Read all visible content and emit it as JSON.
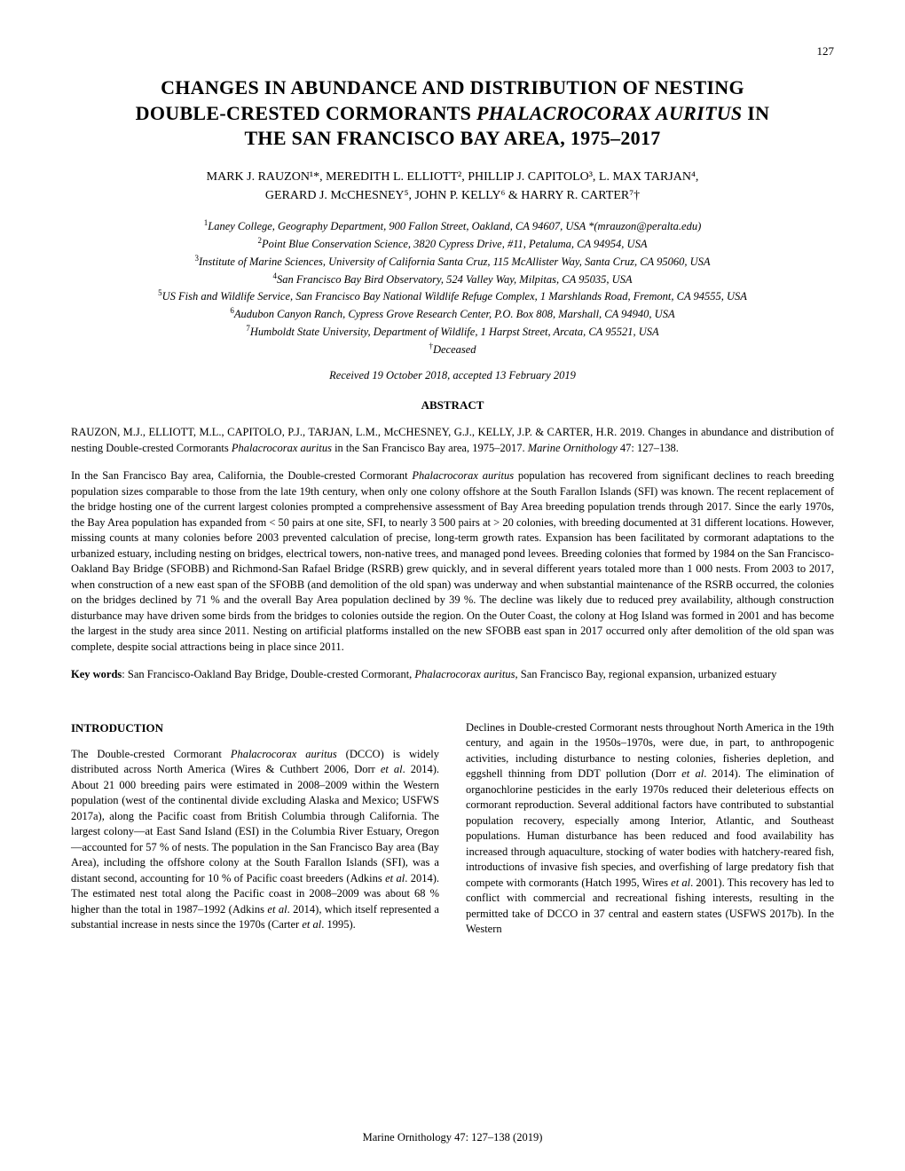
{
  "page_number": "127",
  "title_line1": "CHANGES IN ABUNDANCE AND DISTRIBUTION OF NESTING",
  "title_line2_pre": "DOUBLE-CRESTED CORMORANTS ",
  "title_line2_italic": "PHALACROCORAX AURITUS",
  "title_line2_post": " IN",
  "title_line3": "THE SAN FRANCISCO BAY AREA, 1975–2017",
  "authors_line1": "MARK J. RAUZON¹*, MEREDITH L. ELLIOTT², PHILLIP J. CAPITOLO³, L. MAX TARJAN⁴,",
  "authors_line2": "GERARD J. McCHESNEY⁵, JOHN P. KELLY⁶ & HARRY R. CARTER⁷†",
  "affil1": "Laney College, Geography Department, 900 Fallon Street, Oakland, CA 94607, USA *(mrauzon@peralta.edu)",
  "affil2": "Point Blue Conservation Science, 3820 Cypress Drive, #11, Petaluma, CA 94954, USA",
  "affil3": "Institute of Marine Sciences, University of California Santa Cruz, 115 McAllister Way, Santa Cruz, CA 95060, USA",
  "affil4": "San Francisco Bay Bird Observatory, 524 Valley Way, Milpitas, CA 95035, USA",
  "affil5": "US Fish and Wildlife Service, San Francisco Bay National Wildlife Refuge Complex, 1 Marshlands Road, Fremont, CA 94555, USA",
  "affil6": "Audubon Canyon Ranch, Cypress Grove Research Center, P.O. Box 808, Marshall, CA 94940, USA",
  "affil7": "Humboldt State University, Department of Wildlife, 1 Harpst Street, Arcata, CA 95521, USA",
  "deceased": "Deceased",
  "received": "Received 19 October 2018, accepted 13 February 2019",
  "abstract_heading": "ABSTRACT",
  "citation_pre": "RAUZON, M.J., ELLIOTT, M.L., CAPITOLO, P.J., TARJAN, L.M., McCHESNEY, G.J., KELLY, J.P. & CARTER, H.R. 2019. Changes in abundance and distribution of nesting Double-crested Cormorants ",
  "citation_species": "Phalacrocorax auritus",
  "citation_mid": " in the San Francisco Bay area, 1975–2017. ",
  "citation_journal": "Marine Ornithology",
  "citation_post": " 47: 127–138.",
  "abstract_p1_pre": "In the San Francisco Bay area, California, the Double-crested Cormorant ",
  "abstract_p1_species": "Phalacrocorax auritus",
  "abstract_p1_post": " population has recovered from significant declines to reach breeding population sizes comparable to those from the late 19th century, when only one colony offshore at the South Farallon Islands (SFI) was known. The recent replacement of the bridge hosting one of the current largest colonies prompted a comprehensive assessment of Bay Area breeding population trends through 2017. Since the early 1970s, the Bay Area population has expanded from < 50 pairs at one site, SFI, to nearly 3 500 pairs at > 20 colonies, with breeding documented at 31 different locations. However, missing counts at many colonies before 2003 prevented calculation of precise, long-term growth rates. Expansion has been facilitated by cormorant adaptations to the urbanized estuary, including nesting on bridges, electrical towers, non-native trees, and managed pond levees. Breeding colonies that formed by 1984 on the San Francisco-Oakland Bay Bridge (SFOBB) and Richmond-San Rafael Bridge (RSRB) grew quickly, and in several different years totaled more than 1 000 nests. From 2003 to 2017, when construction of a new east span of the SFOBB (and demolition of the old span) was underway and when substantial maintenance of the RSRB occurred, the colonies on the bridges declined by 71 % and the overall Bay Area population declined by 39 %. The decline was likely due to reduced prey availability, although construction disturbance may have driven some birds from the bridges to colonies outside the region. On the Outer Coast, the colony at Hog Island was formed in 2001 and has become the largest in the study area since 2011. Nesting on artificial platforms installed on the new SFOBB east span in 2017 occurred only after demolition of the old span was complete, despite social attractions being in place since 2011.",
  "keywords_label": "Key words",
  "keywords_pre": ": San Francisco-Oakland Bay Bridge, Double-crested Cormorant, ",
  "keywords_species": "Phalacrocorax auritus,",
  "keywords_post": " San Francisco Bay, regional expansion, urbanized estuary",
  "intro_heading": "INTRODUCTION",
  "col1_p1_pre": "The Double-crested Cormorant ",
  "col1_p1_species": "Phalacrocorax auritus",
  "col1_p1_mid": " (DCCO) is widely distributed across North America (Wires & Cuthbert 2006, Dorr ",
  "col1_p1_etal1": "et al",
  "col1_p1_mid2": ". 2014). About 21 000 breeding pairs were estimated in 2008–2009 within the Western population (west of the continental divide excluding Alaska and Mexico; USFWS 2017a), along the Pacific coast from British Columbia through California. The largest colony—at East Sand Island (ESI) in the Columbia River Estuary, Oregon—accounted for 57 % of nests. The population in the San Francisco Bay area (Bay Area), including the offshore colony at the South Farallon Islands (SFI), was a distant second, accounting for 10 % of Pacific coast breeders (Adkins ",
  "col1_p1_etal2": "et al",
  "col1_p1_mid3": ". 2014). The estimated nest total along the Pacific coast in 2008–2009 was about 68 % higher than the total in 1987–1992 (Adkins ",
  "col1_p1_etal3": "et al",
  "col1_p1_mid4": ". 2014), which itself represented a substantial increase in nests since the 1970s (Carter ",
  "col1_p1_etal4": "et al",
  "col1_p1_end": ". 1995).",
  "col2_p1_pre": "Declines in Double-crested Cormorant nests throughout North America in the 19th century, and again in the 1950s–1970s, were due, in part, to anthropogenic activities, including disturbance to nesting colonies, fisheries depletion, and eggshell thinning from DDT pollution (Dorr ",
  "col2_p1_etal1": "et al",
  "col2_p1_mid": ". 2014). The elimination of organochlorine pesticides in the early 1970s reduced their deleterious effects on cormorant reproduction. Several additional factors have contributed to substantial population recovery, especially among Interior, Atlantic, and Southeast populations. Human disturbance has been reduced and food availability has increased through aquaculture, stocking of water bodies with hatchery-reared fish, introductions of invasive fish species, and overfishing of large predatory fish that compete with cormorants (Hatch 1995, Wires ",
  "col2_p1_etal2": "et al",
  "col2_p1_end": ". 2001). This recovery has led to conflict with commercial and recreational fishing interests, resulting in the permitted take of DCCO in 37 central and eastern states (USFWS 2017b). In the Western",
  "footer": "Marine Ornithology 47: 127–138 (2019)"
}
